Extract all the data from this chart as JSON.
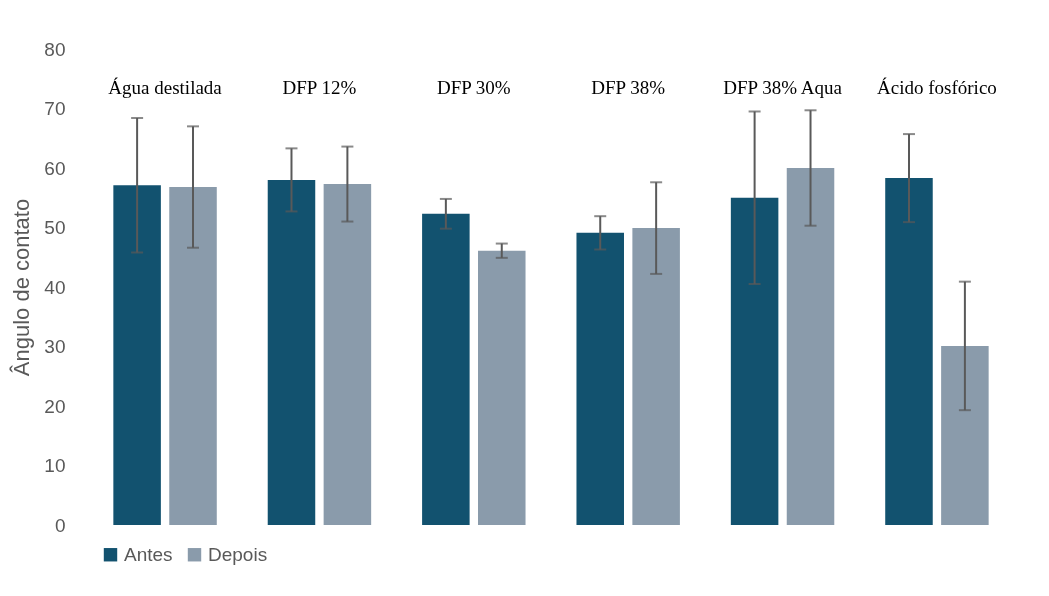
{
  "chart_data": {
    "type": "bar",
    "ylabel": "Ângulo de contato",
    "categories": [
      "Água destilada",
      "DFP 12%",
      "DFP 30%",
      "DFP 38%",
      "DFP 38% Aqua",
      "Ácido fosfórico"
    ],
    "series": [
      {
        "name": "Antes",
        "color": "#12526f",
        "values": [
          57.1,
          58.0,
          52.3,
          49.1,
          55.0,
          58.3
        ],
        "errors": [
          11.3,
          5.3,
          2.5,
          2.8,
          14.5,
          7.4
        ]
      },
      {
        "name": "Depois",
        "color": "#8a9bab",
        "values": [
          56.8,
          57.3,
          46.1,
          49.9,
          60.0,
          30.1
        ],
        "errors": [
          10.2,
          6.3,
          1.2,
          7.7,
          9.7,
          10.8
        ]
      }
    ],
    "ylim": [
      0,
      80
    ],
    "yticks": [
      0,
      10,
      20,
      30,
      40,
      50,
      60,
      70,
      80
    ],
    "grid": false,
    "legend": "bottom"
  }
}
